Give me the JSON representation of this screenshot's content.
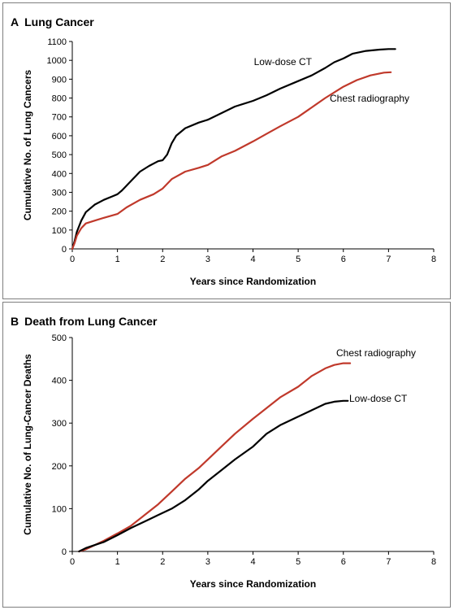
{
  "colors": {
    "low_dose_ct": "#000000",
    "chest_radiography": "#c0392b",
    "border": "#7f7f7f"
  },
  "panels": [
    {
      "letter": "A",
      "title": "Lung Cancer"
    },
    {
      "letter": "B",
      "title": "Death from Lung Cancer"
    }
  ],
  "chart_data": [
    {
      "type": "line",
      "title": "Lung Cancer",
      "panel_letter": "A",
      "xlabel": "Years since Randomization",
      "ylabel": "Cumulative No. of Lung Cancers",
      "xlim": [
        0,
        8
      ],
      "ylim": [
        0,
        1100
      ],
      "xticks": [
        0,
        1,
        2,
        3,
        4,
        5,
        6,
        7,
        8
      ],
      "yticks": [
        0,
        100,
        200,
        300,
        400,
        500,
        600,
        700,
        800,
        900,
        1000,
        1100
      ],
      "grid": false,
      "legend": "direct labels",
      "series": [
        {
          "name": "Low-dose CT",
          "color": "#000000",
          "x": [
            0,
            0.05,
            0.1,
            0.2,
            0.3,
            0.5,
            0.7,
            0.9,
            1.0,
            1.1,
            1.3,
            1.5,
            1.7,
            1.9,
            2.0,
            2.1,
            2.2,
            2.3,
            2.5,
            2.8,
            3.0,
            3.3,
            3.6,
            4.0,
            4.3,
            4.6,
            5.0,
            5.3,
            5.6,
            5.8,
            6.0,
            6.2,
            6.5,
            6.8,
            7.0,
            7.15
          ],
          "y": [
            0,
            40,
            90,
            150,
            195,
            235,
            260,
            280,
            290,
            310,
            360,
            410,
            440,
            465,
            470,
            500,
            560,
            600,
            640,
            670,
            685,
            720,
            755,
            785,
            815,
            850,
            890,
            920,
            960,
            990,
            1010,
            1035,
            1050,
            1057,
            1060,
            1060
          ]
        },
        {
          "name": "Chest radiography",
          "color": "#c0392b",
          "x": [
            0,
            0.05,
            0.1,
            0.2,
            0.3,
            0.5,
            0.7,
            1.0,
            1.2,
            1.5,
            1.8,
            2.0,
            2.2,
            2.5,
            2.8,
            3.0,
            3.3,
            3.6,
            4.0,
            4.3,
            4.6,
            5.0,
            5.3,
            5.6,
            6.0,
            6.3,
            6.6,
            6.9,
            7.05
          ],
          "y": [
            0,
            30,
            70,
            110,
            135,
            150,
            165,
            185,
            220,
            260,
            290,
            320,
            370,
            410,
            430,
            445,
            490,
            520,
            570,
            610,
            650,
            700,
            750,
            800,
            860,
            895,
            920,
            935,
            937
          ]
        }
      ]
    },
    {
      "type": "line",
      "title": "Death from Lung Cancer",
      "panel_letter": "B",
      "xlabel": "Years since Randomization",
      "ylabel": "Cumulative No. of Lung-Cancer Deaths",
      "xlim": [
        0,
        8
      ],
      "ylim": [
        0,
        500
      ],
      "xticks": [
        0,
        1,
        2,
        3,
        4,
        5,
        6,
        7,
        8
      ],
      "yticks": [
        0,
        100,
        200,
        300,
        400,
        500
      ],
      "grid": false,
      "legend": "direct labels",
      "series": [
        {
          "name": "Chest radiography",
          "color": "#c0392b",
          "x": [
            0.15,
            0.3,
            0.5,
            0.7,
            1.0,
            1.3,
            1.6,
            1.9,
            2.2,
            2.5,
            2.8,
            3.0,
            3.3,
            3.6,
            4.0,
            4.3,
            4.6,
            5.0,
            5.3,
            5.6,
            5.8,
            6.0,
            6.15
          ],
          "y": [
            0,
            5,
            15,
            25,
            42,
            60,
            85,
            110,
            140,
            170,
            195,
            215,
            245,
            275,
            310,
            335,
            360,
            385,
            410,
            428,
            436,
            440,
            440
          ]
        },
        {
          "name": "Low-dose CT",
          "color": "#000000",
          "x": [
            0.15,
            0.3,
            0.5,
            0.7,
            1.0,
            1.3,
            1.6,
            1.9,
            2.2,
            2.5,
            2.8,
            3.0,
            3.3,
            3.6,
            4.0,
            4.3,
            4.6,
            5.0,
            5.3,
            5.6,
            5.8,
            6.0,
            6.1
          ],
          "y": [
            0,
            8,
            15,
            22,
            38,
            55,
            70,
            85,
            100,
            120,
            145,
            165,
            190,
            215,
            245,
            275,
            295,
            315,
            330,
            345,
            350,
            352,
            352
          ]
        }
      ]
    }
  ]
}
